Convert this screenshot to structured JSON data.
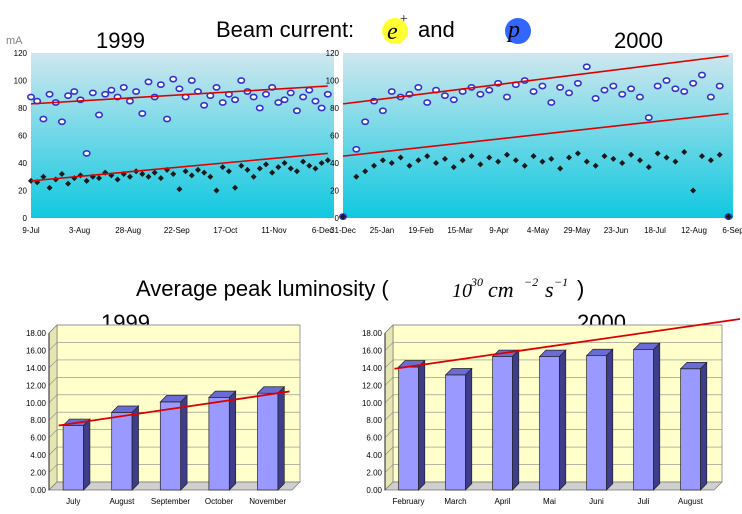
{
  "colors": {
    "positron_point": "#3333cc",
    "proton_point": "#1a1a1a",
    "trend_line": "#dd0000",
    "bar_fill": "#9999ff",
    "lumi_wall": "#ffffcc",
    "beam_bg_top": "#cfe7ee",
    "beam_bg_bottom": "#10c8e0",
    "e_plus_badge": "#ffff33",
    "p_badge": "#3366ff"
  },
  "header": {
    "title": "Beam current:",
    "title_and": "and",
    "e_symbol": "e",
    "e_sup": "+",
    "p_symbol": "p",
    "unit": "mA"
  },
  "lumi_header": {
    "title_prefix": "Average peak luminosity (",
    "base": "10",
    "exp_30": "30",
    "cm": "cm",
    "exp_cm": "−2",
    "s": "s",
    "exp_s": "−1",
    "close": ")"
  },
  "chart_data": [
    {
      "type": "scatter",
      "id": "beam-1999",
      "title": "1999",
      "ylabel": "mA",
      "ylim": [
        0,
        120
      ],
      "yticks": [
        0,
        20,
        40,
        60,
        80,
        100,
        120
      ],
      "xticks": [
        "9-Jul",
        "3-Aug",
        "28-Aug",
        "22-Sep",
        "17-Oct",
        "11-Nov",
        "6-Dec"
      ],
      "series": [
        {
          "name": "e+",
          "color": "#3333cc",
          "x": [
            0,
            1,
            2,
            3,
            4,
            5,
            6,
            7,
            8,
            9,
            10,
            11,
            12,
            13,
            14,
            15,
            16,
            17,
            18,
            19,
            20,
            21,
            22,
            23,
            24,
            25,
            26,
            27,
            28,
            29,
            30,
            31,
            32,
            33,
            34,
            35,
            36,
            37,
            38,
            39,
            40,
            41,
            42,
            43,
            44,
            45,
            46,
            47,
            48
          ],
          "y": [
            88,
            85,
            72,
            90,
            84,
            70,
            89,
            92,
            86,
            47,
            91,
            75,
            90,
            93,
            88,
            95,
            85,
            92,
            76,
            99,
            88,
            97,
            72,
            101,
            94,
            88,
            100,
            92,
            82,
            89,
            95,
            84,
            90,
            86,
            100,
            92,
            88,
            80,
            90,
            95,
            84,
            86,
            91,
            78,
            88,
            93,
            85,
            80,
            90
          ]
        },
        {
          "name": "p",
          "color": "#1a1a1a",
          "x": [
            0,
            1,
            2,
            3,
            4,
            5,
            6,
            7,
            8,
            9,
            10,
            11,
            12,
            13,
            14,
            15,
            16,
            17,
            18,
            19,
            20,
            21,
            22,
            23,
            24,
            25,
            26,
            27,
            28,
            29,
            30,
            31,
            32,
            33,
            34,
            35,
            36,
            37,
            38,
            39,
            40,
            41,
            42,
            43,
            44,
            45,
            46,
            47,
            48
          ],
          "y": [
            27,
            26,
            30,
            22,
            28,
            32,
            25,
            29,
            31,
            27,
            30,
            29,
            33,
            31,
            28,
            32,
            30,
            34,
            32,
            30,
            33,
            29,
            35,
            32,
            21,
            34,
            31,
            35,
            33,
            30,
            20,
            37,
            34,
            22,
            38,
            35,
            30,
            36,
            39,
            33,
            37,
            40,
            36,
            34,
            41,
            38,
            36,
            40,
            42
          ]
        },
        {
          "name": "trend e+",
          "color": "#dd0000",
          "x": [
            0,
            48
          ],
          "y": [
            83,
            96
          ]
        },
        {
          "name": "trend p",
          "color": "#dd0000",
          "x": [
            0,
            48
          ],
          "y": [
            27,
            47
          ]
        }
      ]
    },
    {
      "type": "scatter",
      "id": "beam-2000",
      "title": "2000",
      "ylim": [
        0,
        120
      ],
      "yticks": [
        0,
        20,
        40,
        60,
        80,
        100,
        120
      ],
      "xticks": [
        "31-Dec",
        "25-Jan",
        "19-Feb",
        "15-Mar",
        "9-Apr",
        "4-May",
        "29-May",
        "23-Jun",
        "18-Jul",
        "12-Aug",
        "6-Sep"
      ],
      "series": [
        {
          "name": "e+",
          "color": "#3333cc",
          "x": [
            0,
            3,
            5,
            7,
            9,
            11,
            13,
            15,
            17,
            19,
            21,
            23,
            25,
            27,
            29,
            31,
            33,
            35,
            37,
            39,
            41,
            43,
            45,
            47,
            49,
            51,
            53,
            55,
            57,
            59,
            61,
            63,
            65,
            67,
            69,
            71,
            73,
            75,
            77,
            79,
            81,
            83,
            85,
            87
          ],
          "y": [
            1,
            50,
            70,
            85,
            78,
            92,
            88,
            90,
            95,
            84,
            93,
            89,
            86,
            92,
            95,
            90,
            93,
            98,
            88,
            97,
            100,
            92,
            96,
            84,
            95,
            91,
            98,
            110,
            87,
            93,
            96,
            90,
            94,
            88,
            73,
            96,
            100,
            94,
            92,
            98,
            104,
            88,
            96,
            1
          ]
        },
        {
          "name": "p",
          "color": "#1a1a1a",
          "x": [
            0,
            3,
            5,
            7,
            9,
            11,
            13,
            15,
            17,
            19,
            21,
            23,
            25,
            27,
            29,
            31,
            33,
            35,
            37,
            39,
            41,
            43,
            45,
            47,
            49,
            51,
            53,
            55,
            57,
            59,
            61,
            63,
            65,
            67,
            69,
            71,
            73,
            75,
            77,
            79,
            81,
            83,
            85,
            87
          ],
          "y": [
            1,
            30,
            34,
            38,
            42,
            40,
            44,
            38,
            42,
            45,
            40,
            43,
            37,
            42,
            45,
            39,
            44,
            41,
            46,
            42,
            38,
            45,
            41,
            43,
            36,
            44,
            47,
            41,
            38,
            45,
            43,
            40,
            46,
            42,
            37,
            47,
            44,
            41,
            48,
            20,
            45,
            42,
            46,
            1
          ]
        },
        {
          "name": "trend e+",
          "color": "#dd0000",
          "x": [
            0,
            87
          ],
          "y": [
            83,
            118
          ]
        },
        {
          "name": "trend p",
          "color": "#dd0000",
          "x": [
            0,
            87
          ],
          "y": [
            45,
            76
          ]
        }
      ]
    },
    {
      "type": "bar",
      "id": "lumi-1999",
      "title": "1999",
      "ylim": [
        0,
        18
      ],
      "yticks": [
        "0.00",
        "2.00",
        "4.00",
        "6.00",
        "8.00",
        "10.00",
        "12.00",
        "14.00",
        "16.00",
        "18.00"
      ],
      "categories": [
        "July",
        "August",
        "September",
        "October",
        "November"
      ],
      "values": [
        7.4,
        8.9,
        10.1,
        10.6,
        11.1
      ],
      "trend": [
        7.4,
        11.3
      ]
    },
    {
      "type": "bar",
      "id": "lumi-2000",
      "title": "2000",
      "ylim": [
        0,
        18
      ],
      "yticks": [
        "0.00",
        "2.00",
        "4.00",
        "6.00",
        "8.00",
        "10.00",
        "12.00",
        "14.00",
        "16.00",
        "18.00"
      ],
      "categories": [
        "February",
        "March",
        "April",
        "Mai",
        "Juni",
        "Juli",
        "August"
      ],
      "values": [
        14.1,
        13.2,
        15.3,
        15.3,
        15.4,
        16.1,
        13.9
      ],
      "trend": [
        13.9,
        19.6
      ]
    }
  ]
}
